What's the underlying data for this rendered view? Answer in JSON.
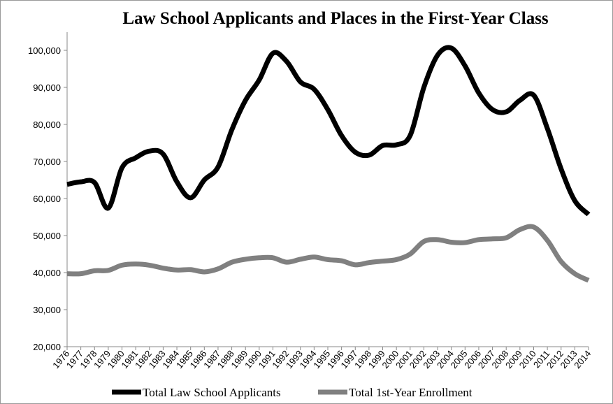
{
  "chart_data": {
    "type": "line",
    "title": "Law School Applicants and Places in the First-Year Class",
    "categories": [
      "1976",
      "1977",
      "1978",
      "1979",
      "1980",
      "1981",
      "1982",
      "1983",
      "1984",
      "1985",
      "1986",
      "1987",
      "1988",
      "1989",
      "1990",
      "1991",
      "1992",
      "1993",
      "1994",
      "1995",
      "1996",
      "1997",
      "1998",
      "1999",
      "2000",
      "2001",
      "2002",
      "2003",
      "2004",
      "2005",
      "2006",
      "2007",
      "2008",
      "2009",
      "2010",
      "2011",
      "2012",
      "2013",
      "2014"
    ],
    "series": [
      {
        "name": "Total Law School Applicants",
        "color": "#000000",
        "values": [
          63800,
          64500,
          64300,
          57400,
          68300,
          71000,
          72800,
          72000,
          64500,
          60200,
          65000,
          68500,
          78500,
          86500,
          92000,
          99200,
          97000,
          91500,
          89500,
          84000,
          77000,
          72500,
          71700,
          74300,
          74500,
          77000,
          90000,
          98700,
          100600,
          95800,
          88500,
          84000,
          83400,
          86500,
          87900,
          78900,
          68000,
          59400,
          55700
        ]
      },
      {
        "name": "Total 1st-Year Enrollment",
        "color": "#808080",
        "values": [
          39700,
          39700,
          40500,
          40600,
          42000,
          42300,
          42000,
          41200,
          40700,
          40800,
          40200,
          41000,
          42800,
          43600,
          44000,
          44000,
          42800,
          43600,
          44200,
          43500,
          43200,
          42100,
          42700,
          43100,
          43500,
          45000,
          48400,
          48900,
          48200,
          48100,
          48900,
          49100,
          49400,
          51600,
          52300,
          48700,
          43000,
          39700,
          37900
        ]
      }
    ],
    "ylim": [
      20000,
      100000
    ],
    "yticks": [
      {
        "value": 20000,
        "label": "20,000"
      },
      {
        "value": 30000,
        "label": "30,000"
      },
      {
        "value": 40000,
        "label": "40,000"
      },
      {
        "value": 50000,
        "label": "50,000"
      },
      {
        "value": 60000,
        "label": "60,000"
      },
      {
        "value": 70000,
        "label": "70,000"
      },
      {
        "value": 80000,
        "label": "80,000"
      },
      {
        "value": 90000,
        "label": "90,000"
      },
      {
        "value": 100000,
        "label": "100,000"
      }
    ],
    "legend": "bottom"
  }
}
